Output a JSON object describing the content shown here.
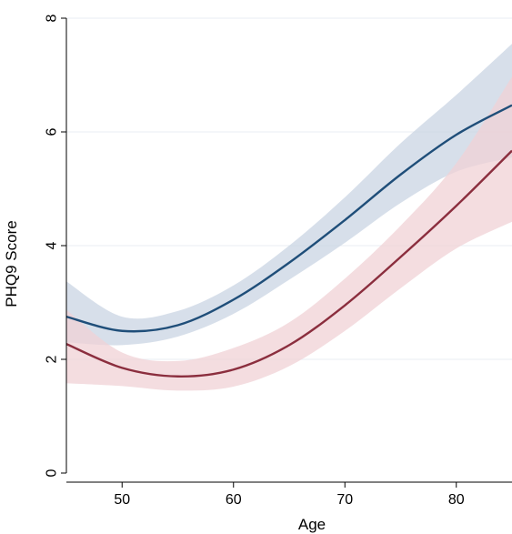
{
  "chart_data": {
    "type": "line",
    "xlabel": "Age",
    "ylabel": "PHQ9 Score",
    "xlim": [
      45,
      85
    ],
    "ylim": [
      0,
      8
    ],
    "x_ticks": [
      50,
      60,
      70,
      80
    ],
    "x_tick_labels": [
      "50",
      "60",
      "70",
      "80"
    ],
    "y_ticks": [
      0,
      2,
      4,
      6,
      8
    ],
    "y_tick_labels": [
      "0",
      "2",
      "4",
      "6",
      "8"
    ],
    "grid": "horizontal",
    "x": [
      45,
      50,
      55,
      60,
      65,
      70,
      75,
      80,
      85
    ],
    "series": [
      {
        "color": "#1f4e79",
        "band_color": "#c9d4e3",
        "values": [
          2.75,
          2.5,
          2.6,
          3.05,
          3.7,
          4.45,
          5.25,
          5.95,
          6.47
        ],
        "lower": [
          2.3,
          2.25,
          2.4,
          2.8,
          3.4,
          4.05,
          4.75,
          5.3,
          5.55
        ],
        "upper": [
          3.37,
          2.75,
          2.85,
          3.3,
          4.0,
          4.85,
          5.8,
          6.65,
          7.55
        ]
      },
      {
        "color": "#8b2e3e",
        "band_color": "#f0d2d5",
        "values": [
          2.27,
          1.85,
          1.7,
          1.82,
          2.25,
          2.95,
          3.8,
          4.7,
          5.67
        ],
        "lower": [
          1.58,
          1.53,
          1.45,
          1.52,
          1.88,
          2.5,
          3.25,
          3.95,
          4.42
        ],
        "upper": [
          2.87,
          2.12,
          1.97,
          2.2,
          2.65,
          3.42,
          4.35,
          5.45,
          6.97
        ]
      }
    ]
  }
}
